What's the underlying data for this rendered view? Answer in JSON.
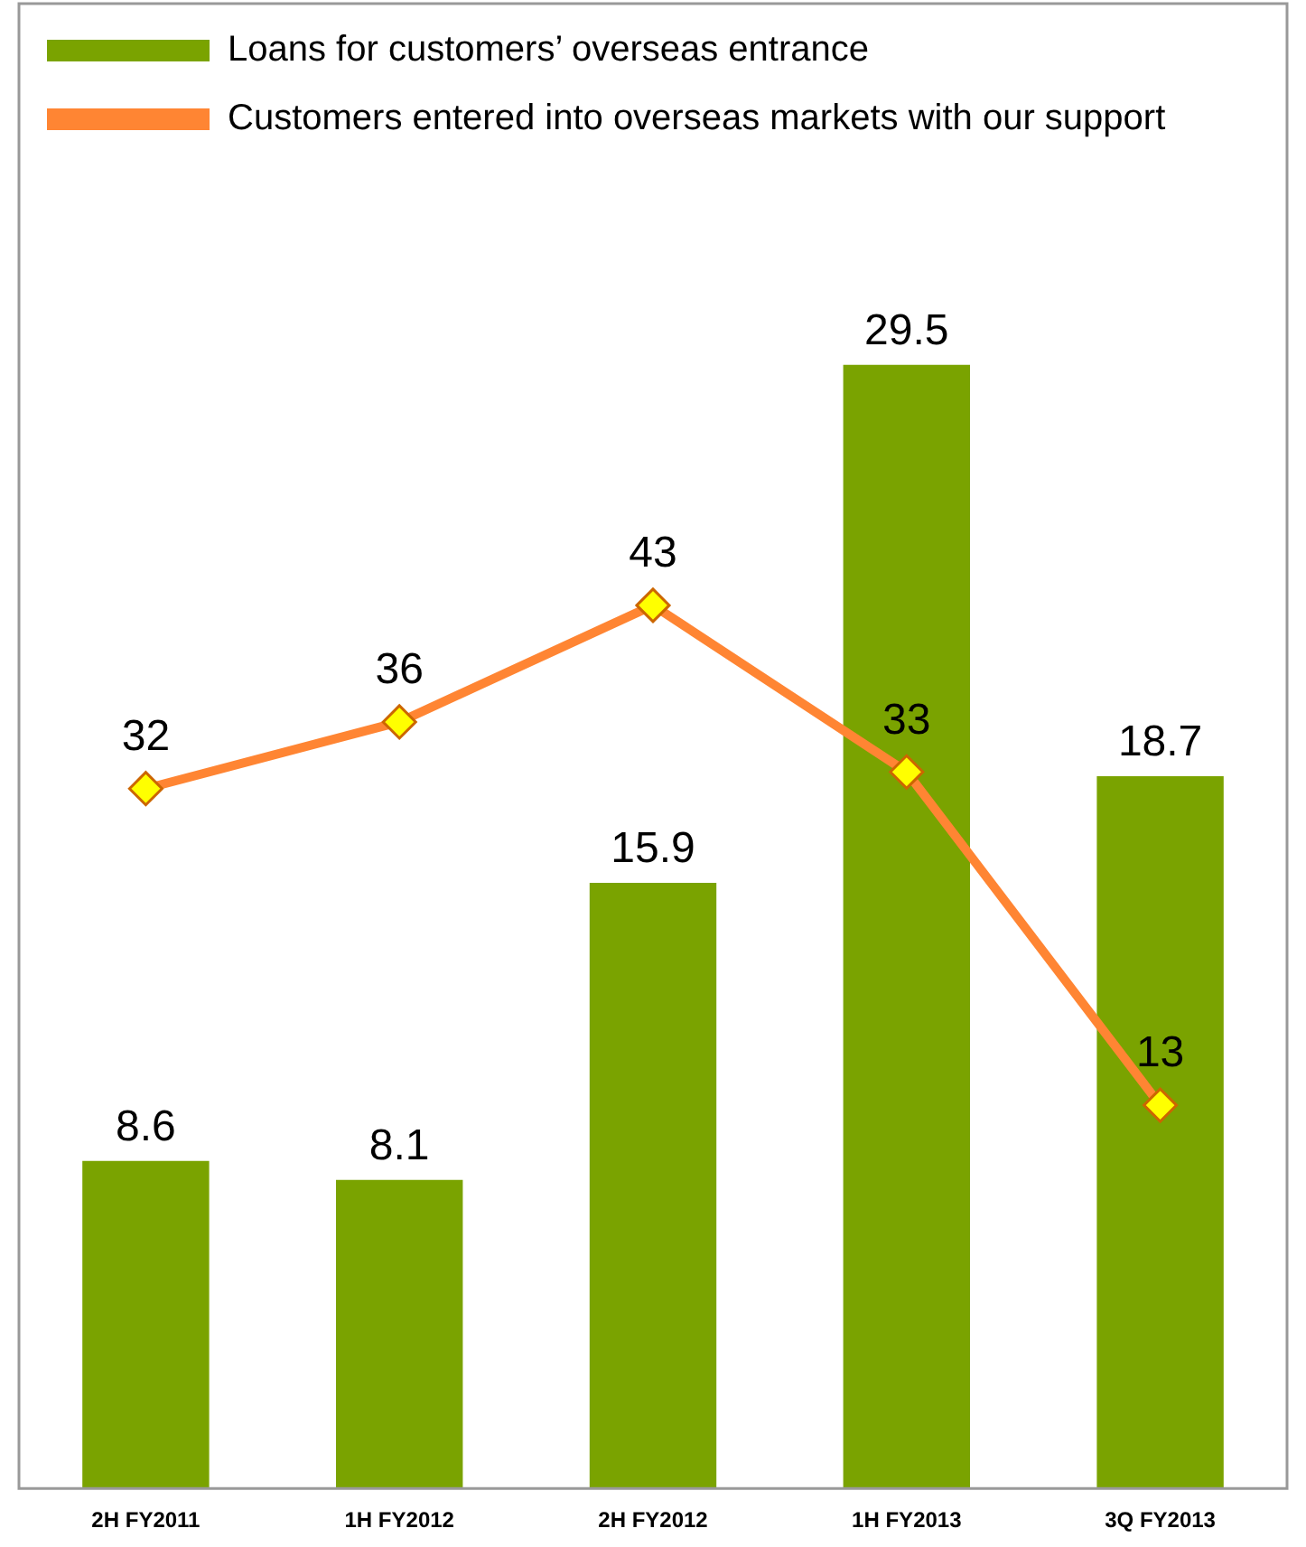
{
  "chart_data": {
    "type": "bar",
    "categories": [
      "2H FY2011",
      "1H FY2012",
      "2H FY2012",
      "1H FY2013",
      "3Q FY2013"
    ],
    "series": [
      {
        "name": "Loans for customers’ overseas entrance",
        "type": "bar",
        "color": "#7aa300",
        "values": [
          8.6,
          8.1,
          15.9,
          29.5,
          18.7
        ]
      },
      {
        "name": "Customers entered into overseas markets with our support",
        "type": "line",
        "axis": "y2",
        "color": "#ff8533",
        "values": [
          32,
          36,
          43,
          33,
          13
        ]
      }
    ],
    "tick_labels": "x",
    "data_labels": true,
    "legend": "top left",
    "grid": false,
    "marker": "diamond",
    "line_style": "solid"
  }
}
